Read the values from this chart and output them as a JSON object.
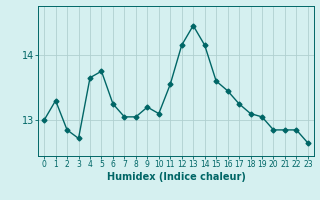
{
  "x": [
    0,
    1,
    2,
    3,
    4,
    5,
    6,
    7,
    8,
    9,
    10,
    11,
    12,
    13,
    14,
    15,
    16,
    17,
    18,
    19,
    20,
    21,
    22,
    23
  ],
  "y": [
    13.0,
    13.3,
    12.85,
    12.72,
    13.65,
    13.75,
    13.25,
    13.05,
    13.05,
    13.2,
    13.1,
    13.55,
    14.15,
    14.45,
    14.15,
    13.6,
    13.45,
    13.25,
    13.1,
    13.05,
    12.85,
    12.85,
    12.85,
    12.65
  ],
  "line_color": "#006666",
  "marker": "D",
  "marker_size": 2.5,
  "bg_color": "#d5f0f0",
  "grid_color": "#b0d0d0",
  "xlabel": "Humidex (Indice chaleur)",
  "yticks": [
    13,
    14
  ],
  "xtick_labels": [
    "0",
    "1",
    "2",
    "3",
    "4",
    "5",
    "6",
    "7",
    "8",
    "9",
    "10",
    "11",
    "12",
    "13",
    "14",
    "15",
    "16",
    "17",
    "18",
    "19",
    "20",
    "21",
    "22",
    "23"
  ],
  "ylim": [
    12.45,
    14.75
  ],
  "xlim": [
    -0.5,
    23.5
  ],
  "xlabel_fontsize": 7,
  "ytick_fontsize": 7,
  "xtick_fontsize": 5.5
}
